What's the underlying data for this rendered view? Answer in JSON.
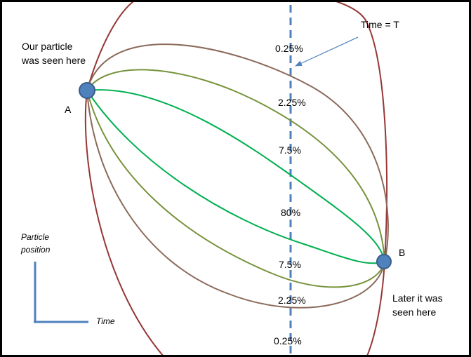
{
  "labels": {
    "time_marker": "Time = T",
    "seen_line1": "Our particle",
    "seen_line2": "was seen here",
    "later_line1": "Later it was",
    "later_line2": "seen here",
    "point_a": "A",
    "point_b": "B",
    "axis_y_line1": "Particle",
    "axis_y_line2": "position",
    "axis_x": "Time"
  },
  "percentages": {
    "top_0_25": "0.25%",
    "top_2_25": "2.25%",
    "top_7_5": "7.5%",
    "middle_80": "80%",
    "bottom_7_5": "7.5%",
    "bottom_2_25": "2.25%",
    "bottom_0_25": "0.25%"
  },
  "colors": {
    "outer_path": "#953735",
    "second_path": "#8B6A5A",
    "third_path": "#77933C",
    "center_path": "#00B050",
    "dashed_line": "#4F81BD",
    "point_fill": "#4F81BD",
    "point_stroke": "#385D8A",
    "axis": "#4F81BD",
    "arrow": "#4F81BD"
  }
}
